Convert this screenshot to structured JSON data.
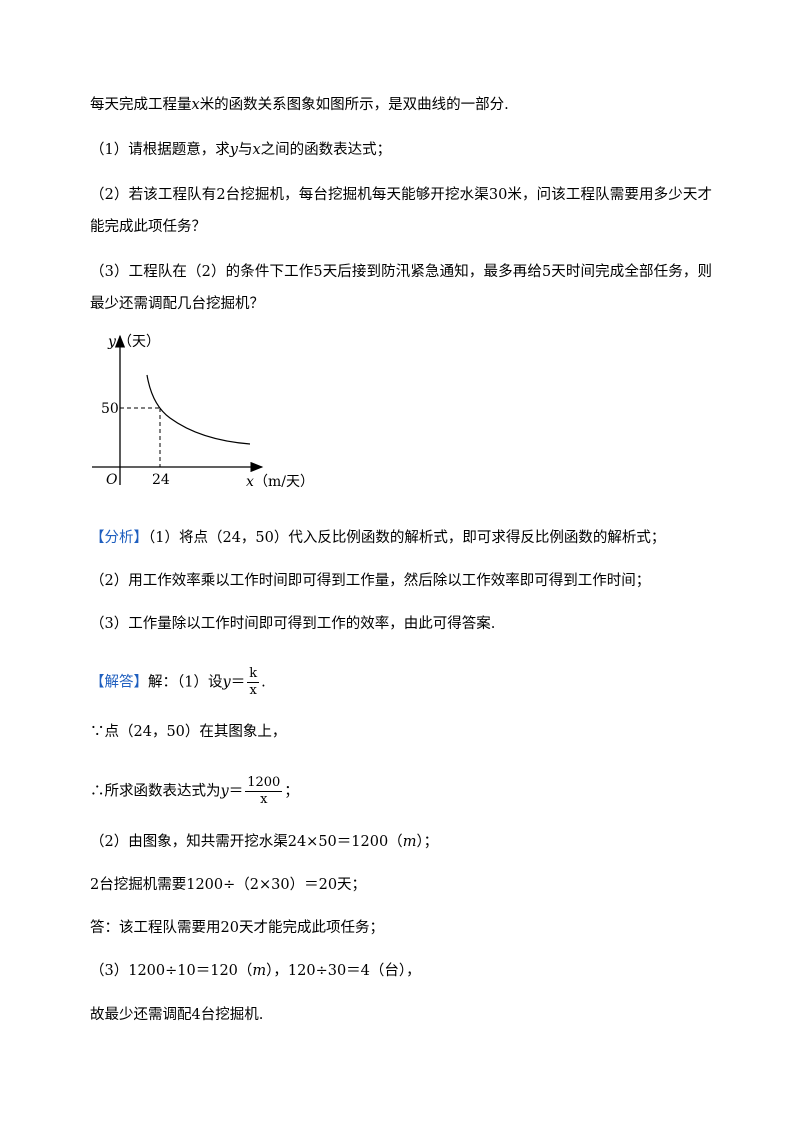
{
  "problem": [
    [
      "每天完成工程量",
      "x",
      "米的函数关系图象如图所示，是双曲线的一部分."
    ],
    [
      "（1）请根据题意，求",
      "y",
      "与",
      "x",
      "之间的函数表达式；"
    ],
    [
      "（2）若该工程队有2台挖掘机，每台挖掘机每天能够开挖水渠30米，问该工程队需要用多少天才能完成此项任务？"
    ],
    [
      "（3）工程队在（2）的条件下工作5天后接到防汛紧急通知，最多再给5天时间完成全部任务，则最少还需调配几台挖掘机？"
    ]
  ],
  "graph": {
    "y_var": "y",
    "y_unit": "（天）",
    "y_tick": "50",
    "x_tick": "24",
    "origin": "O",
    "x_var": "x",
    "x_unit": "（m/天）"
  },
  "analysis": {
    "tag": "【分析】",
    "lines": [
      "（1）将点（24，50）代入反比例函数的解析式，即可求得反比例函数的解析式；",
      "（2）用工作效率乘以工作时间即可得到工作量，然后除以工作效率即可得到工作时间；",
      "（3）工作量除以工作时间即可得到工作的效率，由此可得答案."
    ]
  },
  "solution": {
    "tag": "【解答】",
    "line1": [
      "解：（1）设",
      "y",
      "＝",
      "k",
      "x",
      "."
    ],
    "line2": "∵点（24，50）在其图象上，",
    "line3": [
      "∴所求函数表达式为",
      "y",
      "＝",
      "1200",
      "x",
      "；"
    ],
    "line4": [
      "（2）由图象，知共需开挖水渠24×50＝1200（",
      "m",
      "）；"
    ],
    "line5": "2台挖掘机需要1200÷（2×30）＝20天；",
    "line6": "答：该工程队需要用20天才能完成此项任务；",
    "line7": [
      "（3）1200÷10＝120（",
      "m",
      "），120÷30＝4（台），"
    ],
    "line8": "故最少还需调配4台挖掘机."
  }
}
